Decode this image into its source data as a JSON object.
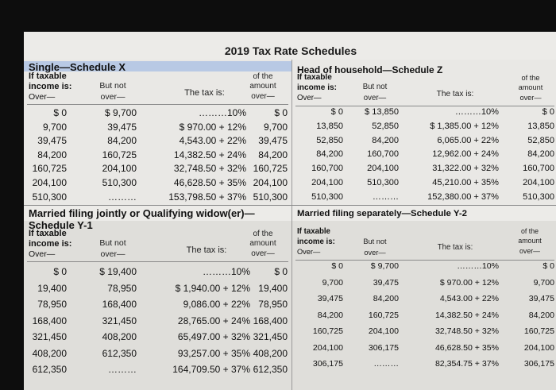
{
  "title": "2019 Tax Rate Schedules",
  "sections": [
    {
      "id": "single",
      "title": "Single—Schedule X",
      "if_taxable": "If taxable",
      "income_is": "income is:",
      "over": "Over—",
      "but_not": "But not",
      "over2": "over—",
      "tax_is": "The tax is:",
      "of_the": "of the",
      "amount": "amount",
      "over3": "over—",
      "rows": [
        {
          "over": "$ 0",
          "but_not": "$ 9,700",
          "tax": "………10%",
          "amount_over": "$ 0"
        },
        {
          "over": "9,700",
          "but_not": "39,475",
          "tax": "$ 970.00 + 12%",
          "amount_over": "9,700"
        },
        {
          "over": "39,475",
          "but_not": "84,200",
          "tax": "4,543.00 + 22%",
          "amount_over": "39,475"
        },
        {
          "over": "84,200",
          "but_not": "160,725",
          "tax": "14,382.50 + 24%",
          "amount_over": "84,200"
        },
        {
          "over": "160,725",
          "but_not": "204,100",
          "tax": "32,748.50 + 32%",
          "amount_over": "160,725"
        },
        {
          "over": "204,100",
          "but_not": "510,300",
          "tax": "46,628.50 + 35%",
          "amount_over": "204,100"
        },
        {
          "over": "510,300",
          "but_not": "………",
          "tax": "153,798.50 + 37%",
          "amount_over": "510,300"
        }
      ]
    },
    {
      "id": "head",
      "title": "Head of household—Schedule Z",
      "if_taxable": "If taxable",
      "income_is": "income is:",
      "over": "Over—",
      "but_not": "But not",
      "over2": "over—",
      "tax_is": "The tax is:",
      "of_the": "of the",
      "amount": "amount",
      "over3": "over—",
      "rows": [
        {
          "over": "$ 0",
          "but_not": "$ 13,850",
          "tax": "………10%",
          "amount_over": "$ 0"
        },
        {
          "over": "13,850",
          "but_not": "52,850",
          "tax": "$ 1,385.00 + 12%",
          "amount_over": "13,850"
        },
        {
          "over": "52,850",
          "but_not": "84,200",
          "tax": "6,065.00 + 22%",
          "amount_over": "52,850"
        },
        {
          "over": "84,200",
          "but_not": "160,700",
          "tax": "12,962.00 + 24%",
          "amount_over": "84,200"
        },
        {
          "over": "160,700",
          "but_not": "204,100",
          "tax": "31,322.00 + 32%",
          "amount_over": "160,700"
        },
        {
          "over": "204,100",
          "but_not": "510,300",
          "tax": "45,210.00 + 35%",
          "amount_over": "204,100"
        },
        {
          "over": "510,300",
          "but_not": "………",
          "tax": "152,380.00 + 37%",
          "amount_over": "510,300"
        }
      ]
    },
    {
      "id": "mfj",
      "title": "Married filing jointly or Qualifying widow(er)—",
      "title2": "Schedule Y-1",
      "if_taxable": "If taxable",
      "income_is": "income is:",
      "over": "Over—",
      "but_not": "But not",
      "over2": "over—",
      "tax_is": "The tax is:",
      "of_the": "of the",
      "amount": "amount",
      "over3": "over—",
      "rows": [
        {
          "over": "$ 0",
          "but_not": "$ 19,400",
          "tax": "………10%",
          "amount_over": "$ 0"
        },
        {
          "over": "19,400",
          "but_not": "78,950",
          "tax": "$ 1,940.00 + 12%",
          "amount_over": "19,400"
        },
        {
          "over": "78,950",
          "but_not": "168,400",
          "tax": "9,086.00 + 22%",
          "amount_over": "78,950"
        },
        {
          "over": "168,400",
          "but_not": "321,450",
          "tax": "28,765.00 + 24%",
          "amount_over": "168,400"
        },
        {
          "over": "321,450",
          "but_not": "408,200",
          "tax": "65,497.00 + 32%",
          "amount_over": "321,450"
        },
        {
          "over": "408,200",
          "but_not": "612,350",
          "tax": "93,257.00 + 35%",
          "amount_over": "408,200"
        },
        {
          "over": "612,350",
          "but_not": "………",
          "tax": "164,709.50 + 37%",
          "amount_over": "612,350"
        }
      ]
    },
    {
      "id": "mfs",
      "title": "Married filing separately—Schedule Y-2",
      "if_taxable": "If taxable",
      "income_is": "income is:",
      "over": "Over—",
      "but_not": "But not",
      "over2": "over—",
      "tax_is": "The tax is:",
      "of_the": "of the",
      "amount": "amount",
      "over3": "over—",
      "rows": [
        {
          "over": "$ 0",
          "but_not": "$ 9,700",
          "tax": "………10%",
          "amount_over": "$ 0"
        },
        {
          "over": "9,700",
          "but_not": "39,475",
          "tax": "$ 970.00 + 12%",
          "amount_over": "9,700"
        },
        {
          "over": "39,475",
          "but_not": "84,200",
          "tax": "4,543.00 + 22%",
          "amount_over": "39,475"
        },
        {
          "over": "84,200",
          "but_not": "160,725",
          "tax": "14,382.50 + 24%",
          "amount_over": "84,200"
        },
        {
          "over": "160,725",
          "but_not": "204,100",
          "tax": "32,748.50 + 32%",
          "amount_over": "160,725"
        },
        {
          "over": "204,100",
          "but_not": "306,175",
          "tax": "46,628.50 + 35%",
          "amount_over": "204,100"
        },
        {
          "over": "306,175",
          "but_not": "………",
          "tax": "82,354.75 + 37%",
          "amount_over": "306,175"
        }
      ]
    }
  ]
}
